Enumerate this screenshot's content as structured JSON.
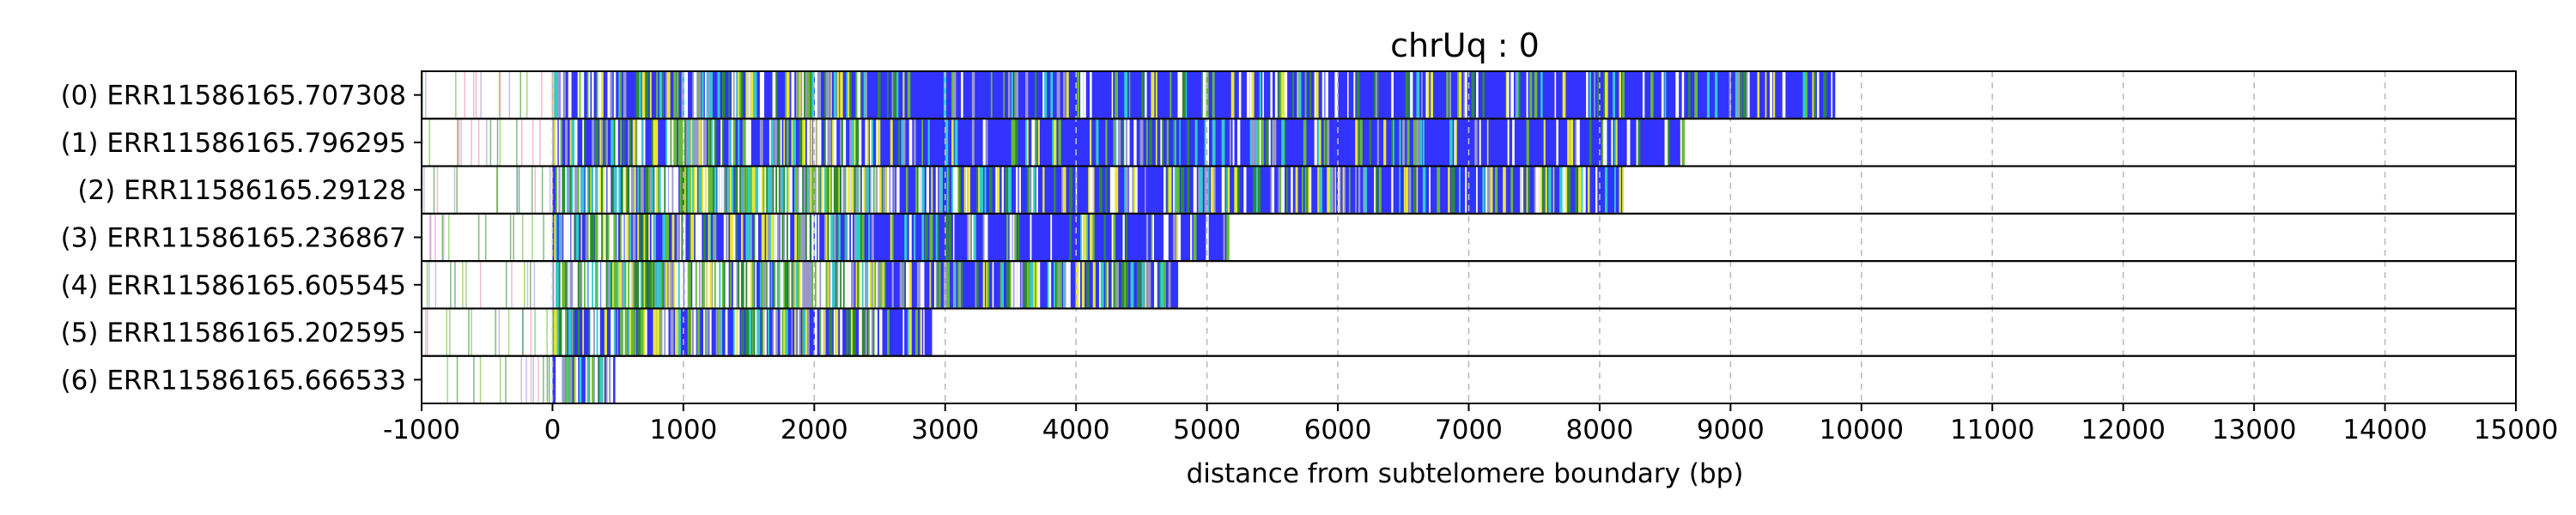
{
  "chart_data": {
    "type": "bar",
    "title": "chrUq : 0",
    "xlabel": "distance from subtelomere boundary (bp)",
    "ylabel": "",
    "xlim": [
      -1000,
      15000
    ],
    "xticks": [
      -1000,
      0,
      1000,
      2000,
      3000,
      4000,
      5000,
      6000,
      7000,
      8000,
      9000,
      10000,
      11000,
      12000,
      13000,
      14000,
      15000
    ],
    "grid": "vertical dashed",
    "colors": {
      "repeat": "#3333ff",
      "variant_green": "#2e8b2e",
      "variant_lightgreen": "#66bb33",
      "variant_yellow": "#e8e833",
      "variant_cyan": "#33cccc",
      "variant_gray": "#9999cc",
      "variant_pink": "#e88ab0",
      "white_gap": "#ffffff"
    },
    "reads": [
      {
        "label": "(0) ERR11586165.707308",
        "end": 9800
      },
      {
        "label": "(1) ERR11586165.796295",
        "end": 8630
      },
      {
        "label": "(2) ERR11586165.29128",
        "end": 8180
      },
      {
        "label": "(3) ERR11586165.236867",
        "end": 5150
      },
      {
        "label": "(4) ERR11586165.605545",
        "end": 4780
      },
      {
        "label": "(5) ERR11586165.202595",
        "end": 2900
      },
      {
        "label": "(6) ERR11586165.666533",
        "end": 480
      }
    ]
  }
}
